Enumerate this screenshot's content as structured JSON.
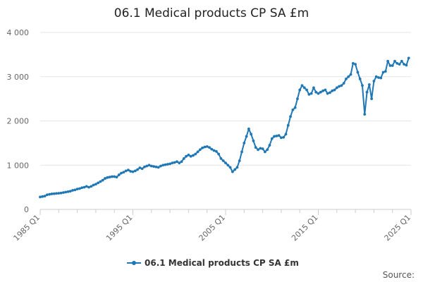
{
  "chart_data": {
    "type": "line",
    "title": "06.1 Medical products CP SA £m",
    "xlabel": "",
    "ylabel": "",
    "ylim": [
      0,
      4000
    ],
    "yticks": [
      0,
      1000,
      2000,
      3000,
      4000
    ],
    "ytick_labels": [
      "0",
      "1 000",
      "2 000",
      "3 000",
      "4 000"
    ],
    "xticks": [
      "1985 Q1",
      "1995 Q1",
      "2005 Q1",
      "2015 Q1",
      "2025 Q1"
    ],
    "grid": true,
    "legend": "bottom",
    "series_color": "#1f77b4",
    "series": [
      {
        "name": "06.1 Medical products CP SA £m",
        "start": "1985 Q1",
        "values": [
          280,
          290,
          300,
          330,
          340,
          350,
          355,
          360,
          365,
          370,
          380,
          390,
          400,
          410,
          430,
          440,
          460,
          470,
          490,
          500,
          520,
          500,
          520,
          550,
          570,
          600,
          630,
          660,
          700,
          720,
          730,
          740,
          740,
          730,
          780,
          820,
          840,
          870,
          890,
          860,
          850,
          870,
          900,
          940,
          920,
          960,
          980,
          1000,
          980,
          970,
          960,
          950,
          980,
          1000,
          1010,
          1020,
          1030,
          1050,
          1060,
          1080,
          1050,
          1080,
          1150,
          1200,
          1230,
          1200,
          1220,
          1250,
          1300,
          1350,
          1390,
          1410,
          1420,
          1400,
          1360,
          1330,
          1310,
          1250,
          1150,
          1100,
          1050,
          1000,
          950,
          850,
          900,
          950,
          1100,
          1300,
          1500,
          1650,
          1820,
          1700,
          1550,
          1400,
          1350,
          1380,
          1370,
          1300,
          1350,
          1450,
          1600,
          1650,
          1660,
          1670,
          1620,
          1630,
          1700,
          1900,
          2100,
          2250,
          2300,
          2500,
          2700,
          2800,
          2750,
          2700,
          2600,
          2620,
          2750,
          2650,
          2620,
          2650,
          2680,
          2700,
          2620,
          2640,
          2680,
          2700,
          2750,
          2780,
          2800,
          2850,
          2950,
          3000,
          3050,
          3300,
          3280,
          3100,
          2950,
          2800,
          2150,
          2650,
          2820,
          2500,
          2900,
          3000,
          2980,
          2970,
          3100,
          3120,
          3350,
          3250,
          3250,
          3350,
          3300,
          3280,
          3350,
          3280,
          3260,
          3420
        ]
      }
    ],
    "source": "Source:"
  }
}
